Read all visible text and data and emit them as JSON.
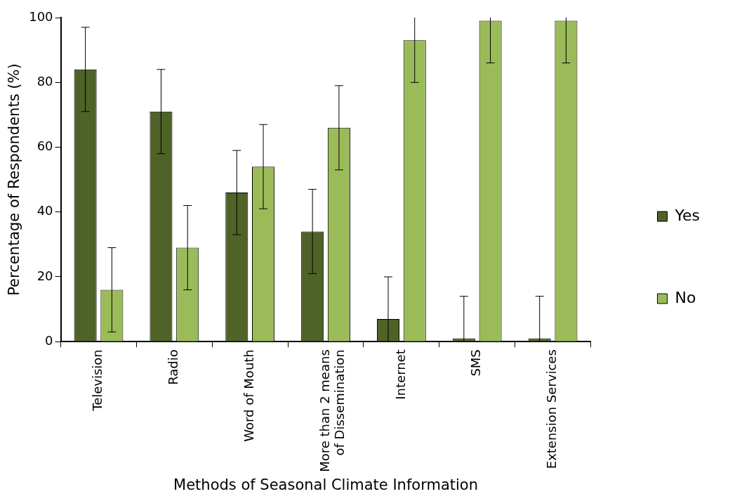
{
  "chart_data": {
    "type": "bar",
    "xlabel": "Methods of Seasonal Climate Information",
    "ylabel": "Percentage of Respondents (%)",
    "categories": [
      "Television",
      "Radio",
      "Word of Mouth",
      "More than 2 means of Dissemination",
      "Internet",
      "SMS",
      "Extension Services"
    ],
    "series": [
      {
        "name": "Yes",
        "color": "#4f6228",
        "values": [
          84,
          71,
          46,
          34,
          7,
          1,
          1
        ],
        "errors": [
          13,
          13,
          13,
          13,
          [
            0,
            20
          ],
          [
            0,
            14
          ],
          [
            0,
            14
          ]
        ]
      },
      {
        "name": "No",
        "color": "#9bbb59",
        "values": [
          16,
          29,
          54,
          66,
          93,
          99,
          99
        ],
        "errors": [
          13,
          13,
          13,
          13,
          [
            80,
            100
          ],
          [
            86,
            100
          ],
          [
            86,
            100
          ]
        ]
      }
    ],
    "ylim": [
      0,
      100
    ],
    "yticks": [
      0,
      20,
      40,
      60,
      80,
      100
    ],
    "grid": false,
    "legend": "right"
  }
}
